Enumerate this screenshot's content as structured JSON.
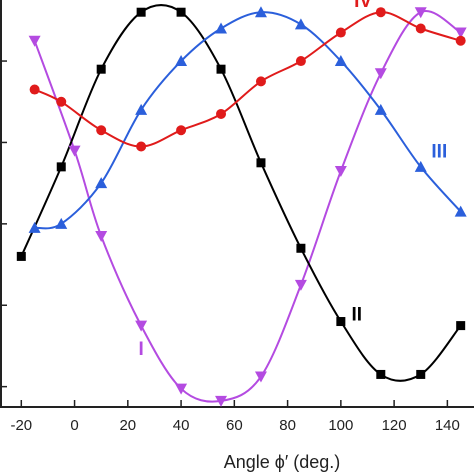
{
  "chart_data": {
    "type": "scatter",
    "xlabel": "Angle ϕ′ (deg.)",
    "ylabel": "",
    "xlim": [
      -28,
      150
    ],
    "ylim": [
      0,
      1
    ],
    "x_ticks": [
      -20,
      0,
      20,
      40,
      60,
      80,
      100,
      120,
      140
    ],
    "y_ticks": [
      0.05,
      0.25,
      0.45,
      0.65,
      0.85
    ],
    "grid": false,
    "series": [
      {
        "name": "I",
        "color": "#b44be1",
        "marker": "triangle-down",
        "x": [
          -15,
          0,
          10,
          25,
          40,
          55,
          70,
          85,
          100,
          115,
          130,
          145
        ],
        "y": [
          0.9,
          0.63,
          0.42,
          0.2,
          0.045,
          0.015,
          0.075,
          0.3,
          0.58,
          0.82,
          0.97,
          0.92
        ]
      },
      {
        "name": "II",
        "color": "#000000",
        "marker": "square",
        "x": [
          -20,
          -5,
          10,
          25,
          40,
          55,
          70,
          85,
          100,
          115,
          130,
          145
        ],
        "y": [
          0.37,
          0.59,
          0.83,
          0.97,
          0.97,
          0.83,
          0.6,
          0.39,
          0.21,
          0.08,
          0.08,
          0.2
        ]
      },
      {
        "name": "III",
        "color": "#2b5fdb",
        "marker": "triangle-up",
        "x": [
          -15,
          -5,
          10,
          25,
          40,
          55,
          70,
          85,
          100,
          115,
          130,
          145
        ],
        "y": [
          0.44,
          0.45,
          0.55,
          0.73,
          0.85,
          0.93,
          0.97,
          0.94,
          0.85,
          0.73,
          0.59,
          0.48
        ]
      },
      {
        "name": "IV",
        "color": "#e01b1b",
        "marker": "circle",
        "x": [
          -15,
          -5,
          10,
          25,
          40,
          55,
          70,
          85,
          100,
          115,
          130,
          145
        ],
        "y": [
          0.78,
          0.75,
          0.68,
          0.64,
          0.68,
          0.72,
          0.8,
          0.85,
          0.92,
          0.97,
          0.93,
          0.9
        ]
      }
    ],
    "annotations": [
      {
        "text": "IV",
        "series": "IV",
        "x": 105,
        "y": 1.0
      },
      {
        "text": "III",
        "series": "III",
        "x": 134,
        "y": 0.63
      },
      {
        "text": "II",
        "series": "II",
        "x": 104,
        "y": 0.23
      },
      {
        "text": "I",
        "series": "I",
        "x": 24,
        "y": 0.145
      }
    ]
  }
}
